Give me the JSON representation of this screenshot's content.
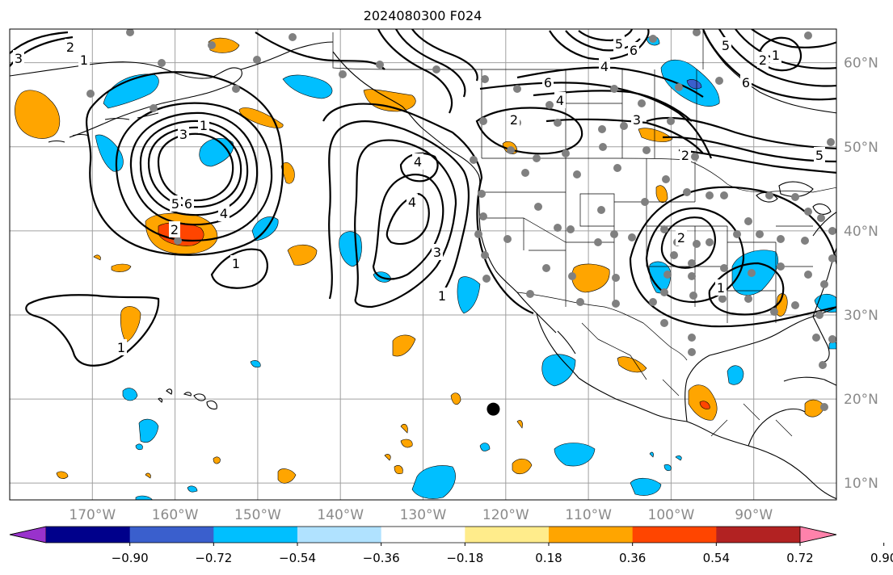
{
  "title": "2024080300 F024",
  "map": {
    "lon_range": [
      -180,
      -80
    ],
    "lat_range": [
      8,
      64
    ],
    "lon_ticks": [
      -170,
      -160,
      -150,
      -140,
      -130,
      -120,
      -110,
      -100,
      -90
    ],
    "lon_tick_labels": [
      "170°W",
      "160°W",
      "150°W",
      "140°W",
      "130°W",
      "120°W",
      "110°W",
      "100°W",
      "90°W"
    ],
    "lat_ticks": [
      10,
      20,
      30,
      40,
      50,
      60
    ],
    "lat_tick_labels": [
      "10°N",
      "20°N",
      "30°N",
      "40°N",
      "50°N",
      "60°N"
    ],
    "grid": true,
    "storm_marker": {
      "lon": -121.5,
      "lat": 18.8
    },
    "contour_labels": [
      "3",
      "2",
      "1",
      "1",
      "3",
      "5",
      "6",
      "4",
      "2",
      "1",
      "4",
      "4",
      "3",
      "1",
      "6",
      "4",
      "5",
      "6",
      "4",
      "2",
      "3",
      "2",
      "5",
      "2",
      "1",
      "6",
      "5",
      "2",
      "1",
      "1"
    ]
  },
  "colorbar": {
    "colors": [
      "#9932cc",
      "#00008b",
      "#3a5fcd",
      "#00bfff",
      "#b0e2ff",
      "#ffffff",
      "#ffec8b",
      "#ffa500",
      "#ff4500",
      "#b22222",
      "#ff82ab"
    ],
    "tick_labels": [
      "−0.90",
      "−0.72",
      "−0.54",
      "−0.36",
      "−0.18",
      "0.18",
      "0.36",
      "0.54",
      "0.72",
      "0.90"
    ]
  }
}
